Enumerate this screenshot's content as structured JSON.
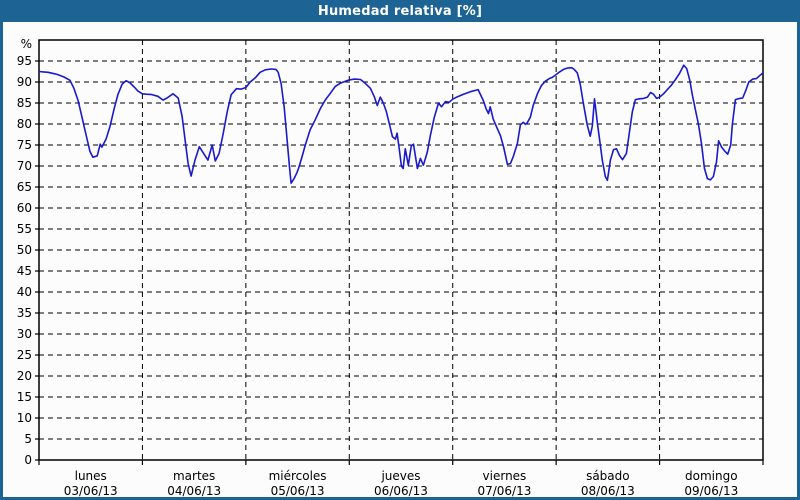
{
  "window": {
    "title": "Humedad relativa [%]"
  },
  "colors": {
    "titlebar": "#1d6394",
    "border": "#1d6394",
    "background": "#fcfcfc",
    "axis": "#000000",
    "line": "#1a1acc"
  },
  "chart_data": {
    "type": "line",
    "title": "Humedad relativa [%]",
    "ylabel": "%",
    "ylim": [
      0,
      100
    ],
    "ytick_step": 5,
    "ytick_max": 95,
    "y_ticks": [
      0,
      5,
      10,
      15,
      20,
      25,
      30,
      35,
      40,
      45,
      50,
      55,
      60,
      65,
      70,
      75,
      80,
      85,
      90,
      95
    ],
    "grid": "dashed",
    "legend": null,
    "x_axis": {
      "span_hours": 168,
      "days": [
        {
          "name": "lunes",
          "date": "03/06/13"
        },
        {
          "name": "martes",
          "date": "04/06/13"
        },
        {
          "name": "miércoles",
          "date": "05/06/13"
        },
        {
          "name": "jueves",
          "date": "06/06/13"
        },
        {
          "name": "viernes",
          "date": "07/06/13"
        },
        {
          "name": "sábado",
          "date": "08/06/13"
        },
        {
          "name": "domingo",
          "date": "09/06/13"
        }
      ]
    },
    "points": [
      [
        0,
        92.5
      ],
      [
        1,
        92.4
      ],
      [
        2.1,
        92.3
      ],
      [
        3,
        92.1
      ],
      [
        4.2,
        91.8
      ],
      [
        5.8,
        91.2
      ],
      [
        7.2,
        90.4
      ],
      [
        8.1,
        88.5
      ],
      [
        9.1,
        85.5
      ],
      [
        10,
        81.5
      ],
      [
        10.9,
        77.5
      ],
      [
        11.8,
        73.5
      ],
      [
        12.5,
        72.1
      ],
      [
        13.5,
        72.4
      ],
      [
        14.2,
        75.2
      ],
      [
        14.6,
        74.5
      ],
      [
        15.6,
        76.5
      ],
      [
        16.5,
        79.5
      ],
      [
        17.4,
        83.5
      ],
      [
        18.3,
        87
      ],
      [
        19.3,
        89.5
      ],
      [
        20.2,
        90.3
      ],
      [
        21.1,
        89.8
      ],
      [
        22.1,
        88.8
      ],
      [
        23,
        87.8
      ],
      [
        24,
        87.2
      ],
      [
        24.9,
        87.1
      ],
      [
        26.2,
        87
      ],
      [
        27.6,
        86.6
      ],
      [
        28.8,
        85.7
      ],
      [
        29.7,
        86.2
      ],
      [
        31.1,
        87.2
      ],
      [
        32.3,
        86.2
      ],
      [
        33.2,
        81.8
      ],
      [
        33.9,
        76.2
      ],
      [
        34.6,
        70.6
      ],
      [
        35.3,
        67.6
      ],
      [
        36.2,
        71.4
      ],
      [
        37.2,
        74.6
      ],
      [
        38.3,
        72.8
      ],
      [
        39.2,
        71.4
      ],
      [
        40.2,
        75
      ],
      [
        40.9,
        71.2
      ],
      [
        41.8,
        73
      ],
      [
        42.7,
        77.5
      ],
      [
        43.7,
        83
      ],
      [
        44.6,
        87
      ],
      [
        45.8,
        88.4
      ],
      [
        46.9,
        88.3
      ],
      [
        48,
        88.7
      ],
      [
        49,
        90
      ],
      [
        50.2,
        91
      ],
      [
        51.3,
        92.3
      ],
      [
        52.5,
        92.9
      ],
      [
        53.9,
        93.1
      ],
      [
        55,
        93
      ],
      [
        55.5,
        92.3
      ],
      [
        56.2,
        89.5
      ],
      [
        56.9,
        84
      ],
      [
        57.6,
        76
      ],
      [
        58.1,
        70
      ],
      [
        58.5,
        65.9
      ],
      [
        59.2,
        67
      ],
      [
        59.9,
        68.5
      ],
      [
        60.4,
        70
      ],
      [
        61.1,
        72.4
      ],
      [
        61.8,
        75
      ],
      [
        62.9,
        78.6
      ],
      [
        64.1,
        81
      ],
      [
        65.3,
        83.7
      ],
      [
        66.4,
        85.7
      ],
      [
        67.6,
        87.3
      ],
      [
        68.7,
        88.9
      ],
      [
        69.9,
        89.7
      ],
      [
        71.1,
        90.2
      ],
      [
        72,
        90.5
      ],
      [
        73.2,
        90.7
      ],
      [
        74.6,
        90.6
      ],
      [
        75.7,
        89.7
      ],
      [
        76.9,
        88.5
      ],
      [
        77.8,
        86.5
      ],
      [
        78.5,
        84.4
      ],
      [
        79.2,
        86.4
      ],
      [
        79.9,
        85
      ],
      [
        80.6,
        83
      ],
      [
        81.3,
        80
      ],
      [
        82,
        77
      ],
      [
        82.7,
        76.4
      ],
      [
        83.1,
        77.8
      ],
      [
        83.6,
        74
      ],
      [
        84.1,
        70
      ],
      [
        84.5,
        69.4
      ],
      [
        85,
        74.1
      ],
      [
        85.7,
        70.2
      ],
      [
        86.4,
        74.8
      ],
      [
        86.9,
        75.2
      ],
      [
        87.8,
        69.4
      ],
      [
        88.5,
        71.8
      ],
      [
        89.2,
        70.2
      ],
      [
        90.1,
        73.3
      ],
      [
        90.8,
        77.2
      ],
      [
        91.7,
        81.5
      ],
      [
        92.7,
        85
      ],
      [
        93.4,
        84.1
      ],
      [
        94.3,
        85.3
      ],
      [
        95.2,
        85.2
      ],
      [
        96,
        85.9
      ],
      [
        97.1,
        86.5
      ],
      [
        98.5,
        87.1
      ],
      [
        100.1,
        87.7
      ],
      [
        101.9,
        88.2
      ],
      [
        103.1,
        85.6
      ],
      [
        103.8,
        83.5
      ],
      [
        104.3,
        82.5
      ],
      [
        104.7,
        84.1
      ],
      [
        105.4,
        81.2
      ],
      [
        106.1,
        79.5
      ],
      [
        107.1,
        77.2
      ],
      [
        107.8,
        74.5
      ],
      [
        108.7,
        70.4
      ],
      [
        109.4,
        70.6
      ],
      [
        110.1,
        72.4
      ],
      [
        111,
        75.4
      ],
      [
        111.7,
        79.8
      ],
      [
        112.4,
        80.4
      ],
      [
        112.9,
        79.9
      ],
      [
        113.3,
        80.3
      ],
      [
        114,
        81.6
      ],
      [
        114.7,
        84.5
      ],
      [
        115.7,
        87.3
      ],
      [
        116.6,
        89.2
      ],
      [
        117.5,
        90.2
      ],
      [
        118.4,
        90.8
      ],
      [
        119.1,
        91.1
      ],
      [
        119.9,
        91.7
      ],
      [
        120.8,
        92.4
      ],
      [
        121.7,
        93
      ],
      [
        122.6,
        93.3
      ],
      [
        123.6,
        93.4
      ],
      [
        124.2,
        93
      ],
      [
        124.9,
        92.2
      ],
      [
        125.6,
        89.4
      ],
      [
        126.3,
        85
      ],
      [
        127.2,
        79.8
      ],
      [
        127.9,
        77.1
      ],
      [
        128.4,
        79.5
      ],
      [
        128.9,
        86
      ],
      [
        129.6,
        80
      ],
      [
        130,
        77
      ],
      [
        130.7,
        71.4
      ],
      [
        131.4,
        67.5
      ],
      [
        131.9,
        66.6
      ],
      [
        132.6,
        71.4
      ],
      [
        133.3,
        73.9
      ],
      [
        134,
        74.1
      ],
      [
        134.7,
        72.5
      ],
      [
        135.4,
        71.5
      ],
      [
        136.3,
        73
      ],
      [
        137,
        78
      ],
      [
        137.7,
        83
      ],
      [
        138.4,
        85.8
      ],
      [
        139.3,
        86
      ],
      [
        140.3,
        86.1
      ],
      [
        141.2,
        86.4
      ],
      [
        141.9,
        87.5
      ],
      [
        142.6,
        87.1
      ],
      [
        143.3,
        86.1
      ],
      [
        144,
        86.4
      ],
      [
        144.9,
        87.2
      ],
      [
        145.8,
        88.2
      ],
      [
        146.8,
        89.3
      ],
      [
        147.7,
        90.6
      ],
      [
        148.6,
        92
      ],
      [
        149.6,
        94
      ],
      [
        150.3,
        93.2
      ],
      [
        151,
        90.5
      ],
      [
        151.6,
        87
      ],
      [
        152.3,
        83.5
      ],
      [
        153,
        80
      ],
      [
        153.7,
        75.5
      ],
      [
        154.4,
        69.5
      ],
      [
        155.1,
        67
      ],
      [
        155.8,
        66.7
      ],
      [
        156.5,
        67.5
      ],
      [
        157.2,
        71
      ],
      [
        157.7,
        76
      ],
      [
        158.4,
        74.5
      ],
      [
        159.1,
        73.6
      ],
      [
        159.8,
        72.8
      ],
      [
        160.5,
        75
      ],
      [
        160.9,
        80
      ],
      [
        161.6,
        85.8
      ],
      [
        162.6,
        86.1
      ],
      [
        163.3,
        86.2
      ],
      [
        164,
        88
      ],
      [
        164.7,
        90
      ],
      [
        165.6,
        90.7
      ],
      [
        166.5,
        90.8
      ],
      [
        167.2,
        91.5
      ],
      [
        168,
        92.2
      ]
    ]
  }
}
